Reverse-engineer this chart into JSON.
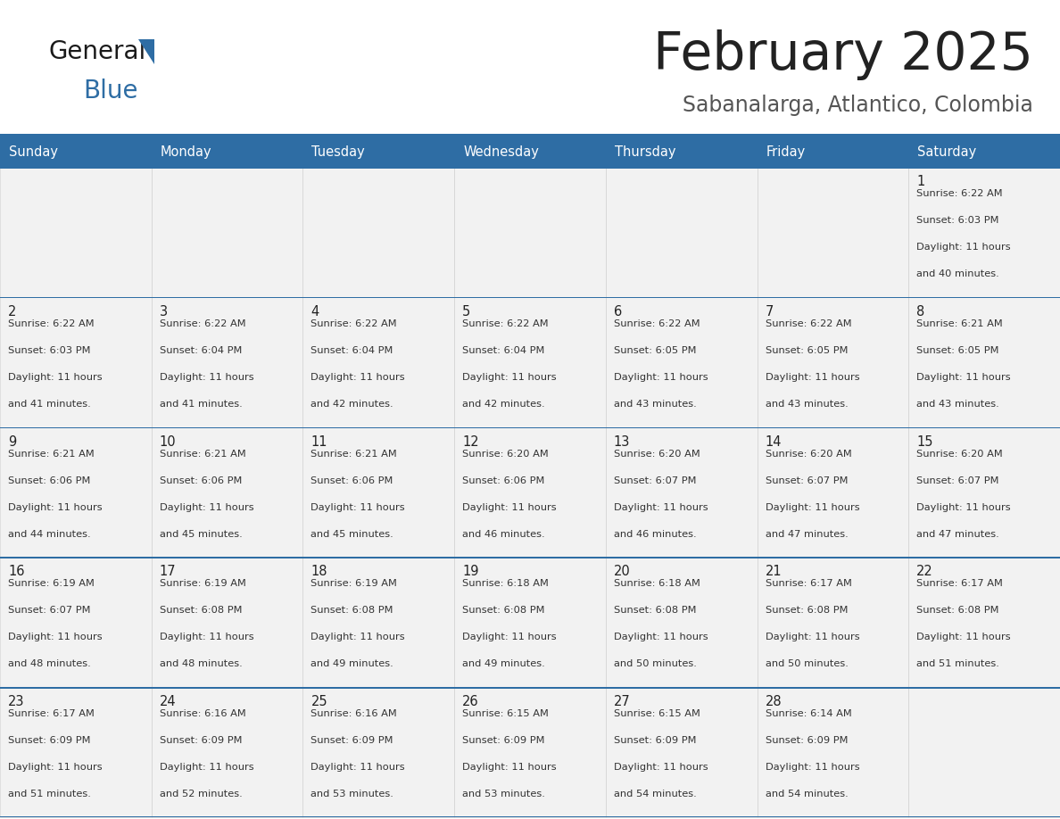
{
  "title": "February 2025",
  "subtitle": "Sabanalarga, Atlantico, Colombia",
  "header_bg": "#2E6DA4",
  "header_text": "#FFFFFF",
  "cell_bg": "#F2F2F2",
  "cell_border": "#CCCCCC",
  "title_color": "#222222",
  "subtitle_color": "#555555",
  "text_color": "#333333",
  "day_headers": [
    "Sunday",
    "Monday",
    "Tuesday",
    "Wednesday",
    "Thursday",
    "Friday",
    "Saturday"
  ],
  "accent_color": "#2E6DA4",
  "logo_general_color": "#1a1a1a",
  "logo_blue_color": "#2E6DA4",
  "logo_triangle_color": "#2E6DA4",
  "days": [
    {
      "day": 1,
      "col": 6,
      "row": 0,
      "sunrise": "6:22 AM",
      "sunset": "6:03 PM",
      "daylight": "11 hours and 40 minutes."
    },
    {
      "day": 2,
      "col": 0,
      "row": 1,
      "sunrise": "6:22 AM",
      "sunset": "6:03 PM",
      "daylight": "11 hours and 41 minutes."
    },
    {
      "day": 3,
      "col": 1,
      "row": 1,
      "sunrise": "6:22 AM",
      "sunset": "6:04 PM",
      "daylight": "11 hours and 41 minutes."
    },
    {
      "day": 4,
      "col": 2,
      "row": 1,
      "sunrise": "6:22 AM",
      "sunset": "6:04 PM",
      "daylight": "11 hours and 42 minutes."
    },
    {
      "day": 5,
      "col": 3,
      "row": 1,
      "sunrise": "6:22 AM",
      "sunset": "6:04 PM",
      "daylight": "11 hours and 42 minutes."
    },
    {
      "day": 6,
      "col": 4,
      "row": 1,
      "sunrise": "6:22 AM",
      "sunset": "6:05 PM",
      "daylight": "11 hours and 43 minutes."
    },
    {
      "day": 7,
      "col": 5,
      "row": 1,
      "sunrise": "6:22 AM",
      "sunset": "6:05 PM",
      "daylight": "11 hours and 43 minutes."
    },
    {
      "day": 8,
      "col": 6,
      "row": 1,
      "sunrise": "6:21 AM",
      "sunset": "6:05 PM",
      "daylight": "11 hours and 43 minutes."
    },
    {
      "day": 9,
      "col": 0,
      "row": 2,
      "sunrise": "6:21 AM",
      "sunset": "6:06 PM",
      "daylight": "11 hours and 44 minutes."
    },
    {
      "day": 10,
      "col": 1,
      "row": 2,
      "sunrise": "6:21 AM",
      "sunset": "6:06 PM",
      "daylight": "11 hours and 45 minutes."
    },
    {
      "day": 11,
      "col": 2,
      "row": 2,
      "sunrise": "6:21 AM",
      "sunset": "6:06 PM",
      "daylight": "11 hours and 45 minutes."
    },
    {
      "day": 12,
      "col": 3,
      "row": 2,
      "sunrise": "6:20 AM",
      "sunset": "6:06 PM",
      "daylight": "11 hours and 46 minutes."
    },
    {
      "day": 13,
      "col": 4,
      "row": 2,
      "sunrise": "6:20 AM",
      "sunset": "6:07 PM",
      "daylight": "11 hours and 46 minutes."
    },
    {
      "day": 14,
      "col": 5,
      "row": 2,
      "sunrise": "6:20 AM",
      "sunset": "6:07 PM",
      "daylight": "11 hours and 47 minutes."
    },
    {
      "day": 15,
      "col": 6,
      "row": 2,
      "sunrise": "6:20 AM",
      "sunset": "6:07 PM",
      "daylight": "11 hours and 47 minutes."
    },
    {
      "day": 16,
      "col": 0,
      "row": 3,
      "sunrise": "6:19 AM",
      "sunset": "6:07 PM",
      "daylight": "11 hours and 48 minutes."
    },
    {
      "day": 17,
      "col": 1,
      "row": 3,
      "sunrise": "6:19 AM",
      "sunset": "6:08 PM",
      "daylight": "11 hours and 48 minutes."
    },
    {
      "day": 18,
      "col": 2,
      "row": 3,
      "sunrise": "6:19 AM",
      "sunset": "6:08 PM",
      "daylight": "11 hours and 49 minutes."
    },
    {
      "day": 19,
      "col": 3,
      "row": 3,
      "sunrise": "6:18 AM",
      "sunset": "6:08 PM",
      "daylight": "11 hours and 49 minutes."
    },
    {
      "day": 20,
      "col": 4,
      "row": 3,
      "sunrise": "6:18 AM",
      "sunset": "6:08 PM",
      "daylight": "11 hours and 50 minutes."
    },
    {
      "day": 21,
      "col": 5,
      "row": 3,
      "sunrise": "6:17 AM",
      "sunset": "6:08 PM",
      "daylight": "11 hours and 50 minutes."
    },
    {
      "day": 22,
      "col": 6,
      "row": 3,
      "sunrise": "6:17 AM",
      "sunset": "6:08 PM",
      "daylight": "11 hours and 51 minutes."
    },
    {
      "day": 23,
      "col": 0,
      "row": 4,
      "sunrise": "6:17 AM",
      "sunset": "6:09 PM",
      "daylight": "11 hours and 51 minutes."
    },
    {
      "day": 24,
      "col": 1,
      "row": 4,
      "sunrise": "6:16 AM",
      "sunset": "6:09 PM",
      "daylight": "11 hours and 52 minutes."
    },
    {
      "day": 25,
      "col": 2,
      "row": 4,
      "sunrise": "6:16 AM",
      "sunset": "6:09 PM",
      "daylight": "11 hours and 53 minutes."
    },
    {
      "day": 26,
      "col": 3,
      "row": 4,
      "sunrise": "6:15 AM",
      "sunset": "6:09 PM",
      "daylight": "11 hours and 53 minutes."
    },
    {
      "day": 27,
      "col": 4,
      "row": 4,
      "sunrise": "6:15 AM",
      "sunset": "6:09 PM",
      "daylight": "11 hours and 54 minutes."
    },
    {
      "day": 28,
      "col": 5,
      "row": 4,
      "sunrise": "6:14 AM",
      "sunset": "6:09 PM",
      "daylight": "11 hours and 54 minutes."
    }
  ],
  "num_rows": 5,
  "num_cols": 7
}
